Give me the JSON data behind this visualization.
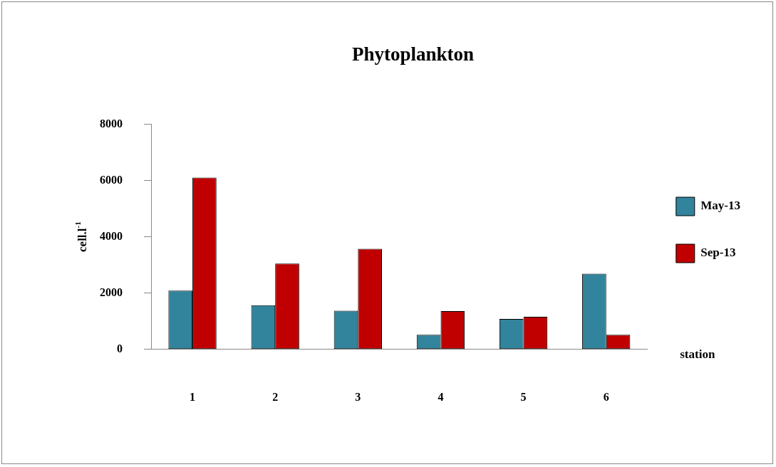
{
  "chart_data": {
    "type": "bar",
    "title": "Phytoplankton",
    "xlabel": "station",
    "ylabel": "cell.l$^{-1}$",
    "categories": [
      "1",
      "2",
      "3",
      "4",
      "5",
      "6"
    ],
    "series": [
      {
        "name": "May-13",
        "color": "#31849b",
        "values": [
          2090,
          1570,
          1370,
          520,
          1080,
          2690
        ]
      },
      {
        "name": "Sep-13",
        "color": "#c00000",
        "values": [
          6100,
          3050,
          3570,
          1360,
          1160,
          520
        ]
      }
    ],
    "ylim": [
      0,
      8000
    ],
    "yticks": [
      0,
      2000,
      4000,
      6000,
      8000
    ],
    "grid": false,
    "legend": "right"
  }
}
